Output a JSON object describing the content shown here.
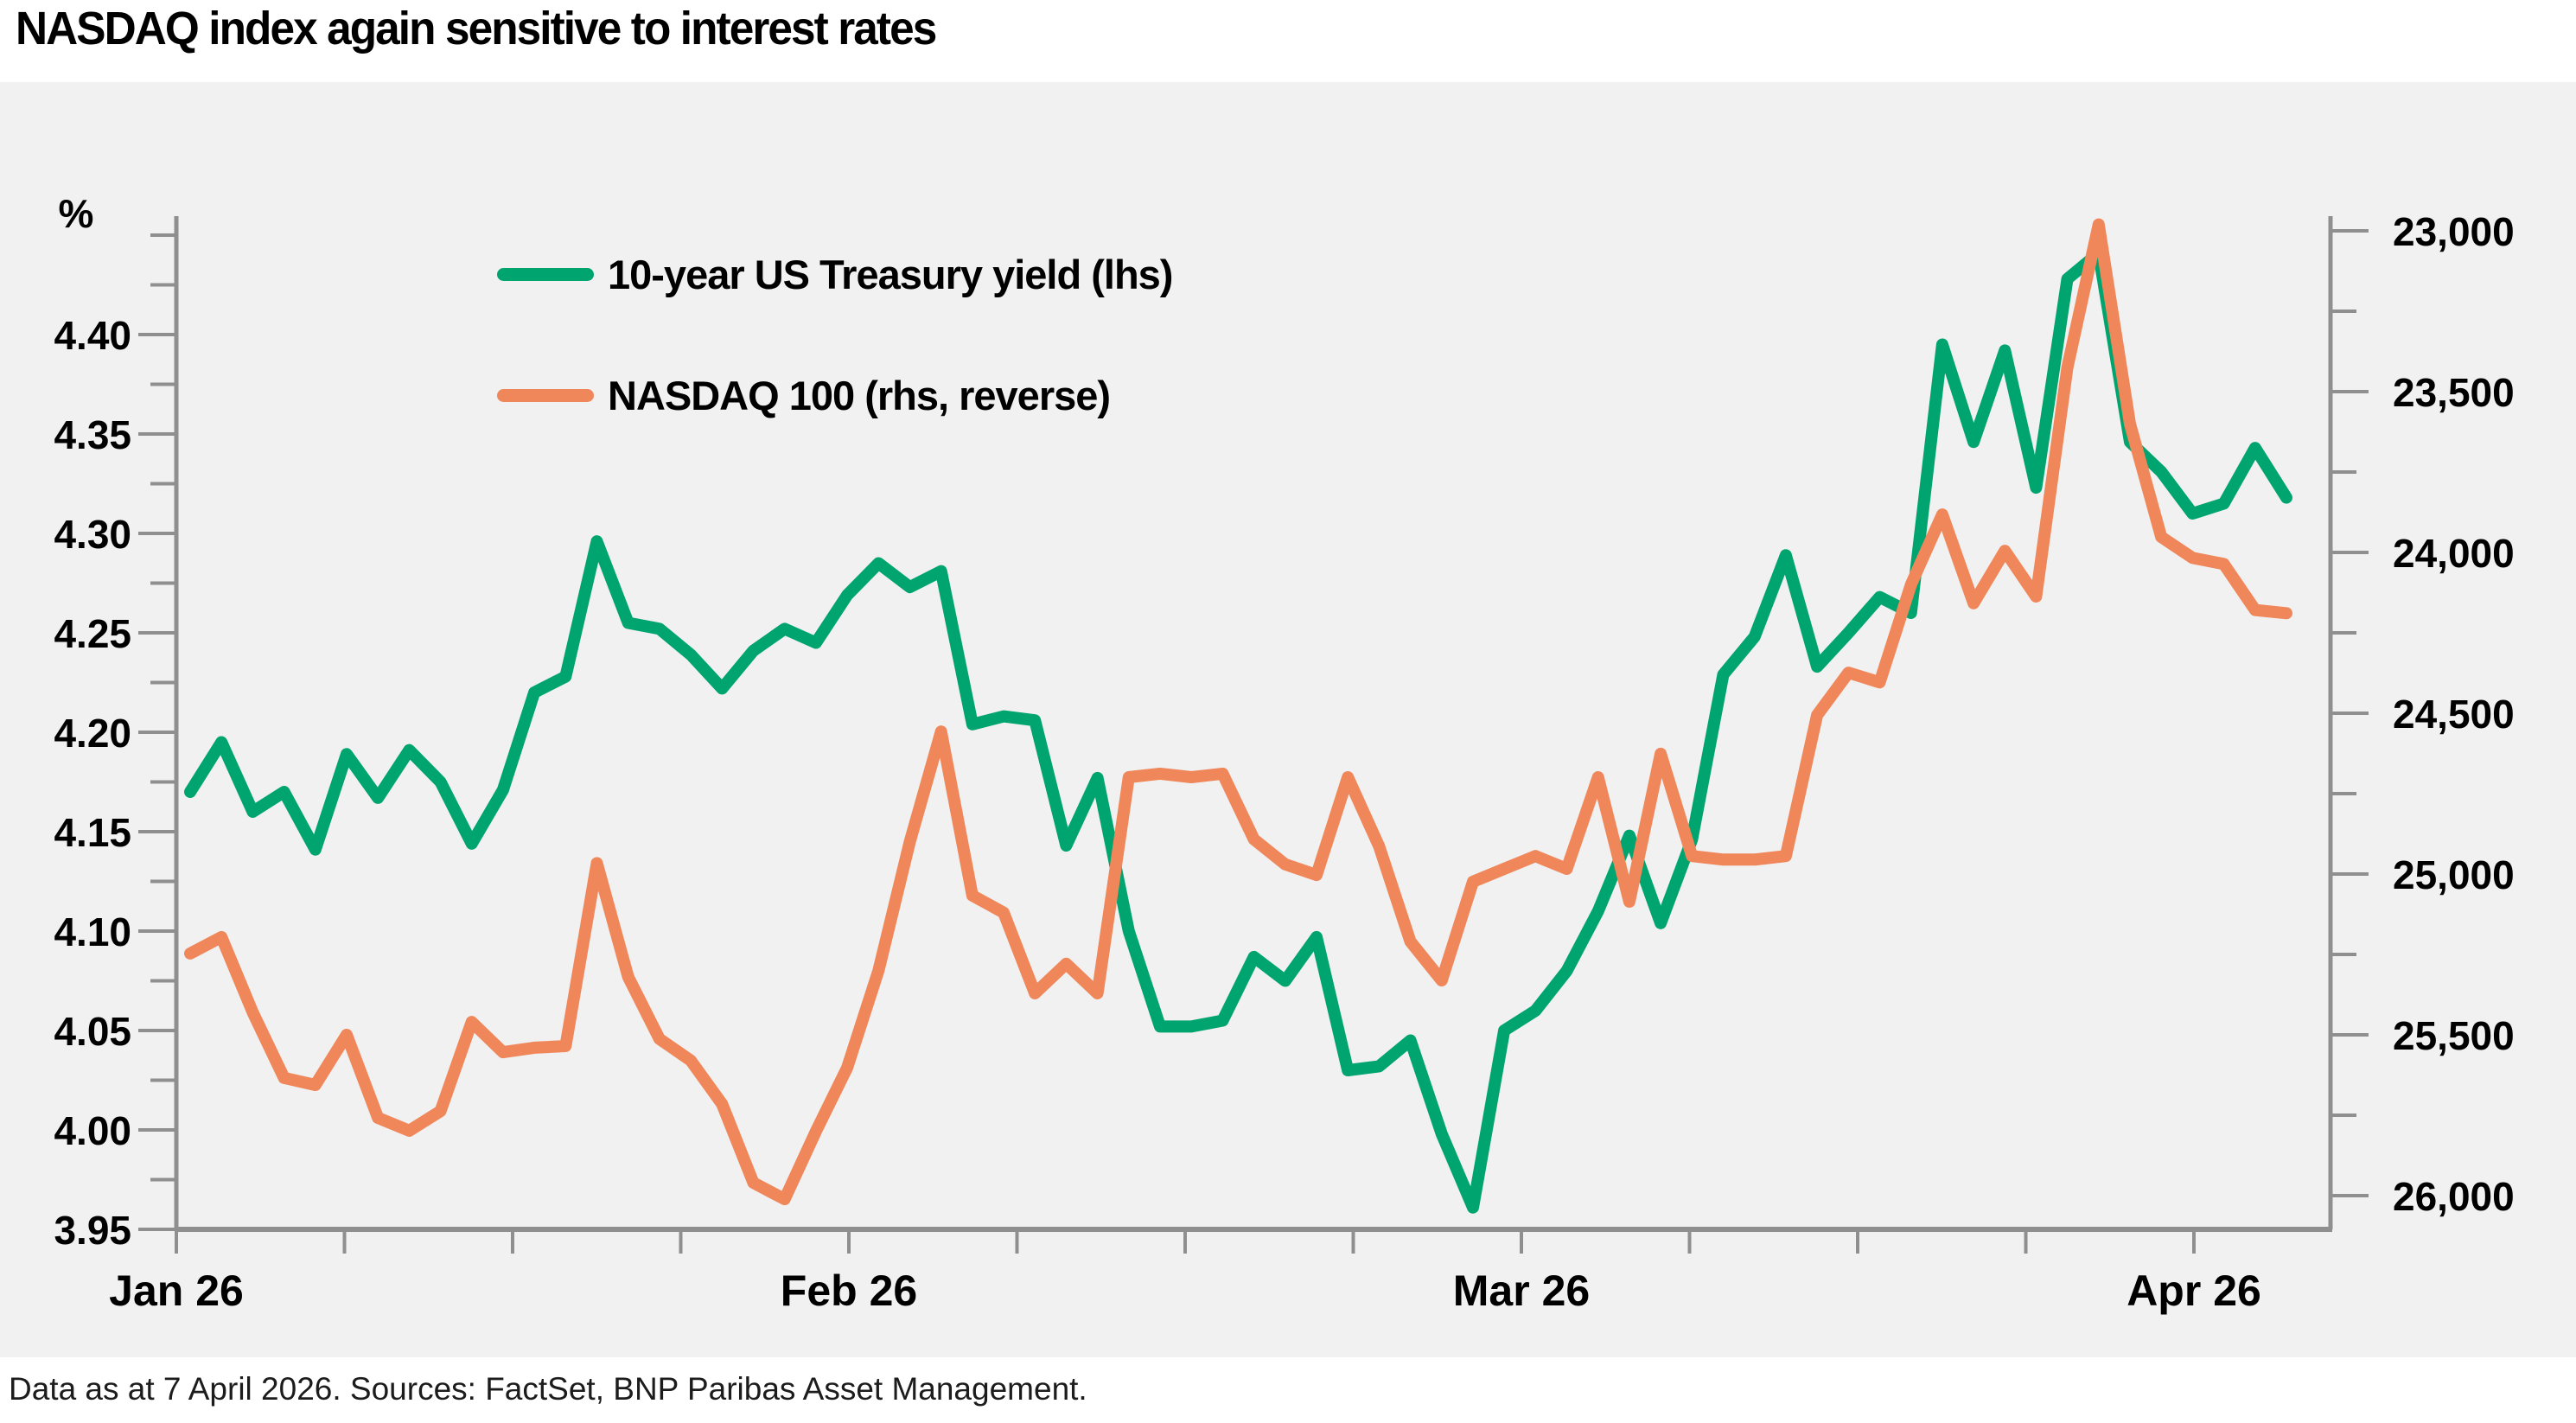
{
  "header": {
    "title": "NASDAQ index again sensitive to interest rates"
  },
  "footer": {
    "text": "Data as at 7 April 2026. Sources: FactSet, BNP Paribas Asset Management."
  },
  "legend": {
    "items": [
      {
        "label": "10-year US Treasury yield (lhs)",
        "color": "#00a46e"
      },
      {
        "label": "NASDAQ 100 (rhs, reverse)",
        "color": "#f0875a"
      }
    ]
  },
  "colors": {
    "background": "#ffffff",
    "panel": "#f1f1f1",
    "axis": "#8f8f8f",
    "text": "#000000",
    "treasury_green": "#00a46e",
    "nasdaq_orange": "#f0875a"
  },
  "chart_data": {
    "type": "line",
    "title": "NASDAQ index again sensitive to interest rates",
    "grid": "off",
    "legend_position": "top-left-inside",
    "x_axis": {
      "labels": [
        "Jan 26",
        "Feb 26",
        "Mar 26",
        "Apr 26"
      ],
      "minor_tick_count": 13,
      "labeled_tick_indices": [
        0,
        4,
        8,
        12
      ]
    },
    "left_axis": {
      "unit": "%",
      "min": 3.95,
      "max": 4.45,
      "minor_step": 0.025,
      "ticks": [
        {
          "label": "4.40",
          "value": 4.4
        },
        {
          "label": "4.35",
          "value": 4.35
        },
        {
          "label": "4.30",
          "value": 4.3
        },
        {
          "label": "4.25",
          "value": 4.25
        },
        {
          "label": "4.20",
          "value": 4.2
        },
        {
          "label": "4.15",
          "value": 4.15
        },
        {
          "label": "4.10",
          "value": 4.1
        },
        {
          "label": "4.05",
          "value": 4.05
        },
        {
          "label": "4.00",
          "value": 4.0
        },
        {
          "label": "3.95",
          "value": 3.95
        }
      ]
    },
    "right_axis": {
      "reverse": true,
      "min": 23000,
      "max": 26000,
      "minor_step": 250,
      "ticks": [
        {
          "label": "23,000",
          "value": 23000
        },
        {
          "label": "23,500",
          "value": 23500
        },
        {
          "label": "24,000",
          "value": 24000
        },
        {
          "label": "24,500",
          "value": 24500
        },
        {
          "label": "25,000",
          "value": 25000
        },
        {
          "label": "25,500",
          "value": 25500
        },
        {
          "label": "26,000",
          "value": 26000
        }
      ]
    },
    "series": [
      {
        "name": "10-year US Treasury yield (lhs)",
        "axis": "left",
        "color": "#00a46e",
        "values": [
          4.17,
          4.195,
          4.16,
          4.17,
          4.141,
          4.189,
          4.167,
          4.191,
          4.175,
          4.144,
          4.171,
          4.22,
          4.228,
          4.296,
          4.255,
          4.252,
          4.239,
          4.222,
          4.241,
          4.252,
          4.245,
          4.269,
          4.285,
          4.273,
          4.281,
          4.204,
          4.208,
          4.206,
          4.143,
          4.177,
          4.1,
          4.052,
          4.052,
          4.055,
          4.087,
          4.075,
          4.097,
          4.03,
          4.032,
          4.045,
          3.998,
          3.961,
          4.05,
          4.06,
          4.08,
          4.11,
          4.148,
          4.104,
          4.146,
          4.229,
          4.248,
          4.289,
          4.233,
          4.25,
          4.268,
          4.26,
          4.395,
          4.346,
          4.392,
          4.323,
          4.428,
          4.441,
          4.346,
          4.331,
          4.31,
          4.315,
          4.343,
          4.318
        ]
      },
      {
        "name": "NASDAQ 100 (rhs, reverse)",
        "axis": "right",
        "color": "#f0875a",
        "values": [
          25247,
          25196,
          25430,
          25634,
          25656,
          25500,
          25758,
          25798,
          25737,
          25460,
          25554,
          25540,
          25535,
          24966,
          25320,
          25513,
          25580,
          25715,
          25960,
          26011,
          25800,
          25602,
          25300,
          24900,
          24557,
          25067,
          25120,
          25371,
          25279,
          25371,
          24699,
          24688,
          24699,
          24688,
          24892,
          24970,
          25003,
          24699,
          24914,
          25210,
          25331,
          25024,
          24984,
          24944,
          24984,
          24699,
          25086,
          24626,
          24944,
          24955,
          24955,
          24944,
          24506,
          24374,
          24404,
          24100,
          23882,
          24158,
          23995,
          24137,
          23425,
          22980,
          23600,
          23952,
          24017,
          24036,
          24179,
          24189
        ]
      }
    ]
  }
}
